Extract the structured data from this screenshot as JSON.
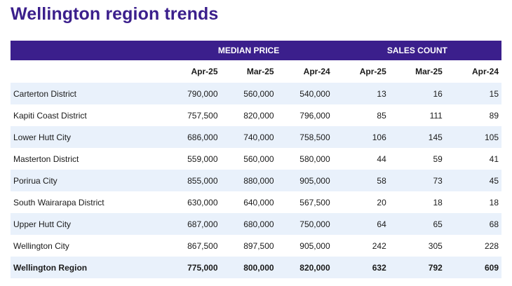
{
  "title": "Wellington region trends",
  "table": {
    "groups": {
      "median_price": "MEDIAN PRICE",
      "sales_count": "SALES COUNT"
    },
    "periods": [
      "Apr-25",
      "Mar-25",
      "Apr-24",
      "Apr-25",
      "Mar-25",
      "Apr-24"
    ],
    "rows": [
      {
        "region": "Carterton District",
        "values": [
          "790,000",
          "560,000",
          "540,000",
          "13",
          "16",
          "15"
        ]
      },
      {
        "region": "Kapiti Coast District",
        "values": [
          "757,500",
          "820,000",
          "796,000",
          "85",
          "111",
          "89"
        ]
      },
      {
        "region": "Lower Hutt City",
        "values": [
          "686,000",
          "740,000",
          "758,500",
          "106",
          "145",
          "105"
        ]
      },
      {
        "region": "Masterton District",
        "values": [
          "559,000",
          "560,000",
          "580,000",
          "44",
          "59",
          "41"
        ]
      },
      {
        "region": "Porirua City",
        "values": [
          "855,000",
          "880,000",
          "905,000",
          "58",
          "73",
          "45"
        ]
      },
      {
        "region": "South Wairarapa District",
        "values": [
          "630,000",
          "640,000",
          "567,500",
          "20",
          "18",
          "18"
        ]
      },
      {
        "region": "Upper Hutt City",
        "values": [
          "687,000",
          "680,000",
          "750,000",
          "64",
          "65",
          "68"
        ]
      },
      {
        "region": "Wellington City",
        "values": [
          "867,500",
          "897,500",
          "905,000",
          "242",
          "305",
          "228"
        ]
      },
      {
        "region": "Wellington Region",
        "values": [
          "775,000",
          "800,000",
          "820,000",
          "632",
          "792",
          "609"
        ]
      }
    ]
  }
}
